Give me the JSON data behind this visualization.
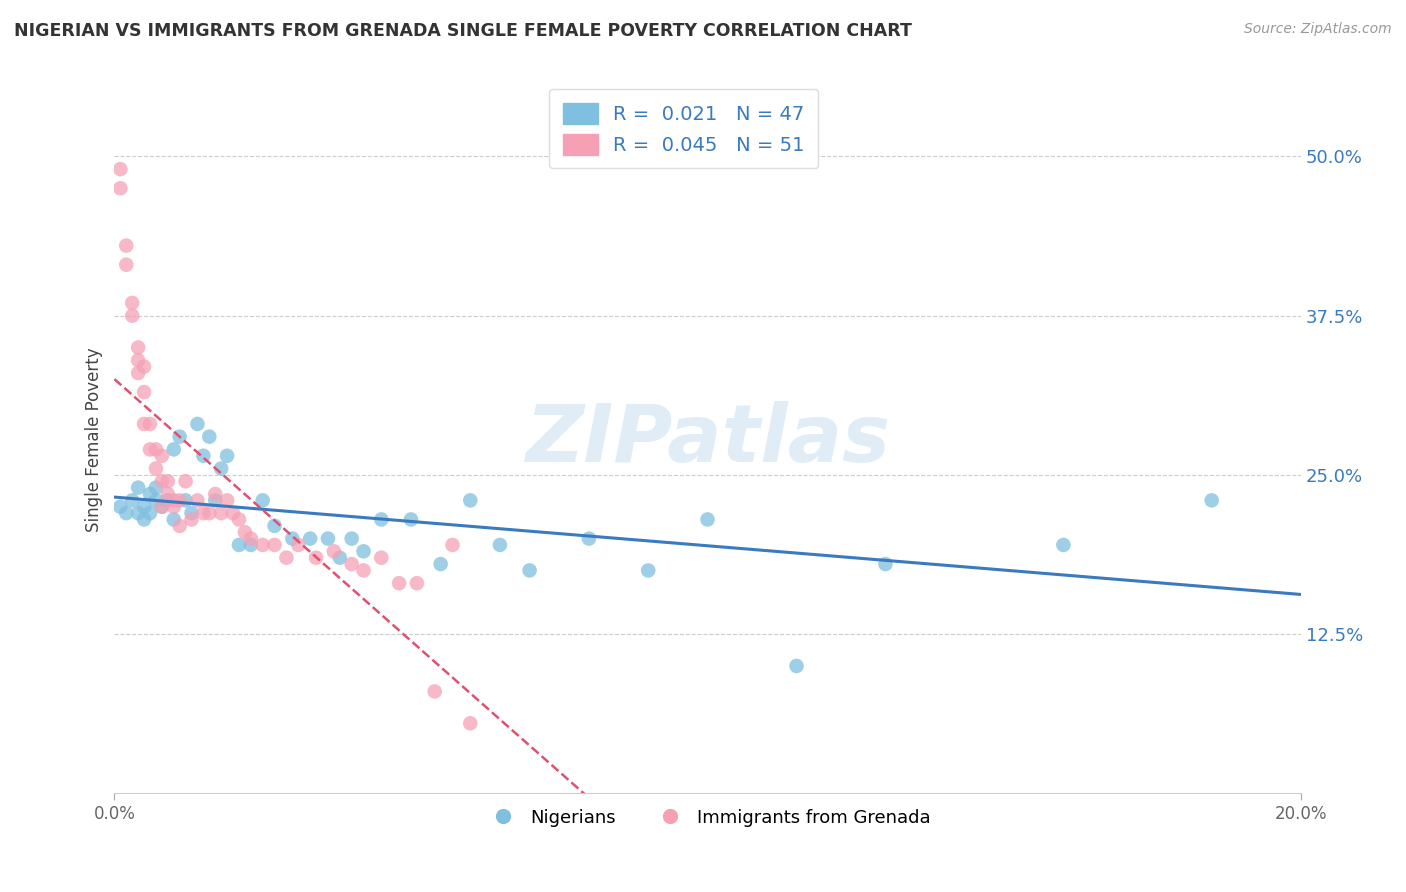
{
  "title": "NIGERIAN VS IMMIGRANTS FROM GRENADA SINGLE FEMALE POVERTY CORRELATION CHART",
  "source": "Source: ZipAtlas.com",
  "ylabel": "Single Female Poverty",
  "yticks": [
    "12.5%",
    "25.0%",
    "37.5%",
    "50.0%"
  ],
  "ytick_vals": [
    0.125,
    0.25,
    0.375,
    0.5
  ],
  "xlim": [
    0.0,
    0.2
  ],
  "ylim": [
    0.0,
    0.555
  ],
  "legend_blue_text": "R =  0.021   N = 47",
  "legend_pink_text": "R =  0.045   N = 51",
  "legend_label1": "Nigerians",
  "legend_label2": "Immigrants from Grenada",
  "blue_color": "#7fbfdf",
  "pink_color": "#f5a0b5",
  "blue_line_color": "#3a7abf",
  "pink_line_color": "#e05070",
  "watermark": "ZIPatlas",
  "nigerians_x": [
    0.001,
    0.002,
    0.003,
    0.004,
    0.004,
    0.005,
    0.005,
    0.006,
    0.006,
    0.007,
    0.007,
    0.008,
    0.009,
    0.01,
    0.01,
    0.011,
    0.012,
    0.013,
    0.014,
    0.015,
    0.016,
    0.017,
    0.018,
    0.019,
    0.021,
    0.023,
    0.025,
    0.027,
    0.03,
    0.033,
    0.036,
    0.038,
    0.04,
    0.042,
    0.045,
    0.05,
    0.055,
    0.06,
    0.065,
    0.07,
    0.08,
    0.09,
    0.1,
    0.115,
    0.13,
    0.16,
    0.185
  ],
  "nigerians_y": [
    0.225,
    0.22,
    0.23,
    0.24,
    0.22,
    0.225,
    0.215,
    0.235,
    0.22,
    0.24,
    0.23,
    0.225,
    0.23,
    0.27,
    0.215,
    0.28,
    0.23,
    0.22,
    0.29,
    0.265,
    0.28,
    0.23,
    0.255,
    0.265,
    0.195,
    0.195,
    0.23,
    0.21,
    0.2,
    0.2,
    0.2,
    0.185,
    0.2,
    0.19,
    0.215,
    0.215,
    0.18,
    0.23,
    0.195,
    0.175,
    0.2,
    0.175,
    0.215,
    0.1,
    0.18,
    0.195,
    0.23
  ],
  "grenada_x": [
    0.001,
    0.001,
    0.002,
    0.002,
    0.003,
    0.003,
    0.004,
    0.004,
    0.004,
    0.005,
    0.005,
    0.005,
    0.006,
    0.006,
    0.007,
    0.007,
    0.008,
    0.008,
    0.008,
    0.009,
    0.009,
    0.01,
    0.01,
    0.011,
    0.011,
    0.012,
    0.013,
    0.014,
    0.015,
    0.016,
    0.017,
    0.018,
    0.019,
    0.02,
    0.021,
    0.022,
    0.023,
    0.025,
    0.027,
    0.029,
    0.031,
    0.034,
    0.037,
    0.04,
    0.042,
    0.045,
    0.048,
    0.051,
    0.054,
    0.057,
    0.06
  ],
  "grenada_y": [
    0.49,
    0.475,
    0.43,
    0.415,
    0.385,
    0.375,
    0.35,
    0.34,
    0.33,
    0.335,
    0.315,
    0.29,
    0.29,
    0.27,
    0.27,
    0.255,
    0.265,
    0.245,
    0.225,
    0.245,
    0.235,
    0.23,
    0.225,
    0.21,
    0.23,
    0.245,
    0.215,
    0.23,
    0.22,
    0.22,
    0.235,
    0.22,
    0.23,
    0.22,
    0.215,
    0.205,
    0.2,
    0.195,
    0.195,
    0.185,
    0.195,
    0.185,
    0.19,
    0.18,
    0.175,
    0.185,
    0.165,
    0.165,
    0.08,
    0.195,
    0.055
  ]
}
